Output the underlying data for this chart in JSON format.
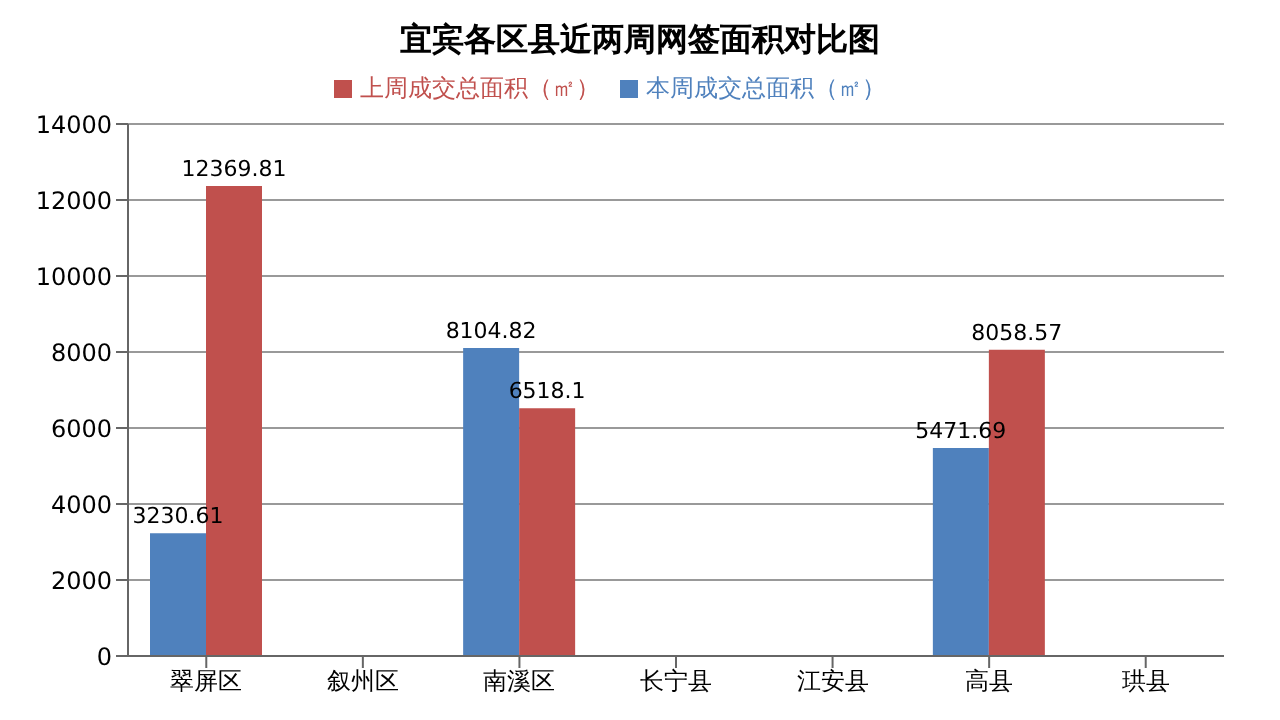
{
  "chart_data": {
    "type": "bar",
    "title": "宜宾各区县近两周网签面积对比图",
    "categories": [
      "翠屏区",
      "叙州区",
      "南溪区",
      "长宁县",
      "江安县",
      "高县",
      "珙县"
    ],
    "series": [
      {
        "name": "本周成交总面积（㎡）",
        "color": "#4f81bd",
        "values": [
          3230.61,
          null,
          8104.82,
          null,
          null,
          5471.69,
          null
        ]
      },
      {
        "name": "上周成交总面积（㎡）",
        "color": "#c0504d",
        "values": [
          12369.81,
          null,
          6518.1,
          null,
          null,
          8058.57,
          null
        ]
      }
    ],
    "ylim": [
      0,
      14000
    ],
    "yticks": [
      0,
      2000,
      4000,
      6000,
      8000,
      10000,
      12000,
      14000
    ],
    "grid": "y",
    "legend": "top",
    "data_labels": true
  }
}
